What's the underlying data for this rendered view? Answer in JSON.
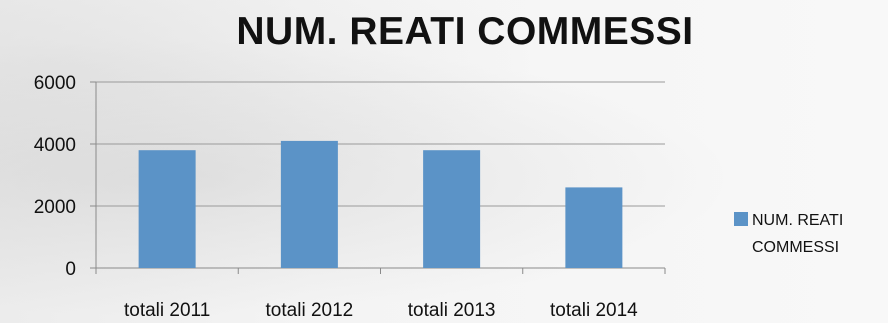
{
  "chart_data": {
    "type": "bar",
    "title": "NUM. REATI COMMESSI",
    "categories": [
      "totali 2011",
      "totali 2012",
      "totali 2013",
      "totali 2014"
    ],
    "series": [
      {
        "name": "NUM. REATI COMMESSI",
        "values": [
          3800,
          4100,
          3800,
          2600
        ]
      }
    ],
    "ylim": [
      0,
      6000
    ],
    "yticks": [
      "0",
      "2000",
      "4000",
      "6000"
    ],
    "grid": true,
    "legend": {
      "position": "right",
      "lines": [
        "NUM. REATI",
        "COMMESSI"
      ]
    },
    "colors": {
      "bar": "#5b93c7",
      "grid": "#9a9a9a",
      "axis": "#8a8a8a"
    }
  }
}
